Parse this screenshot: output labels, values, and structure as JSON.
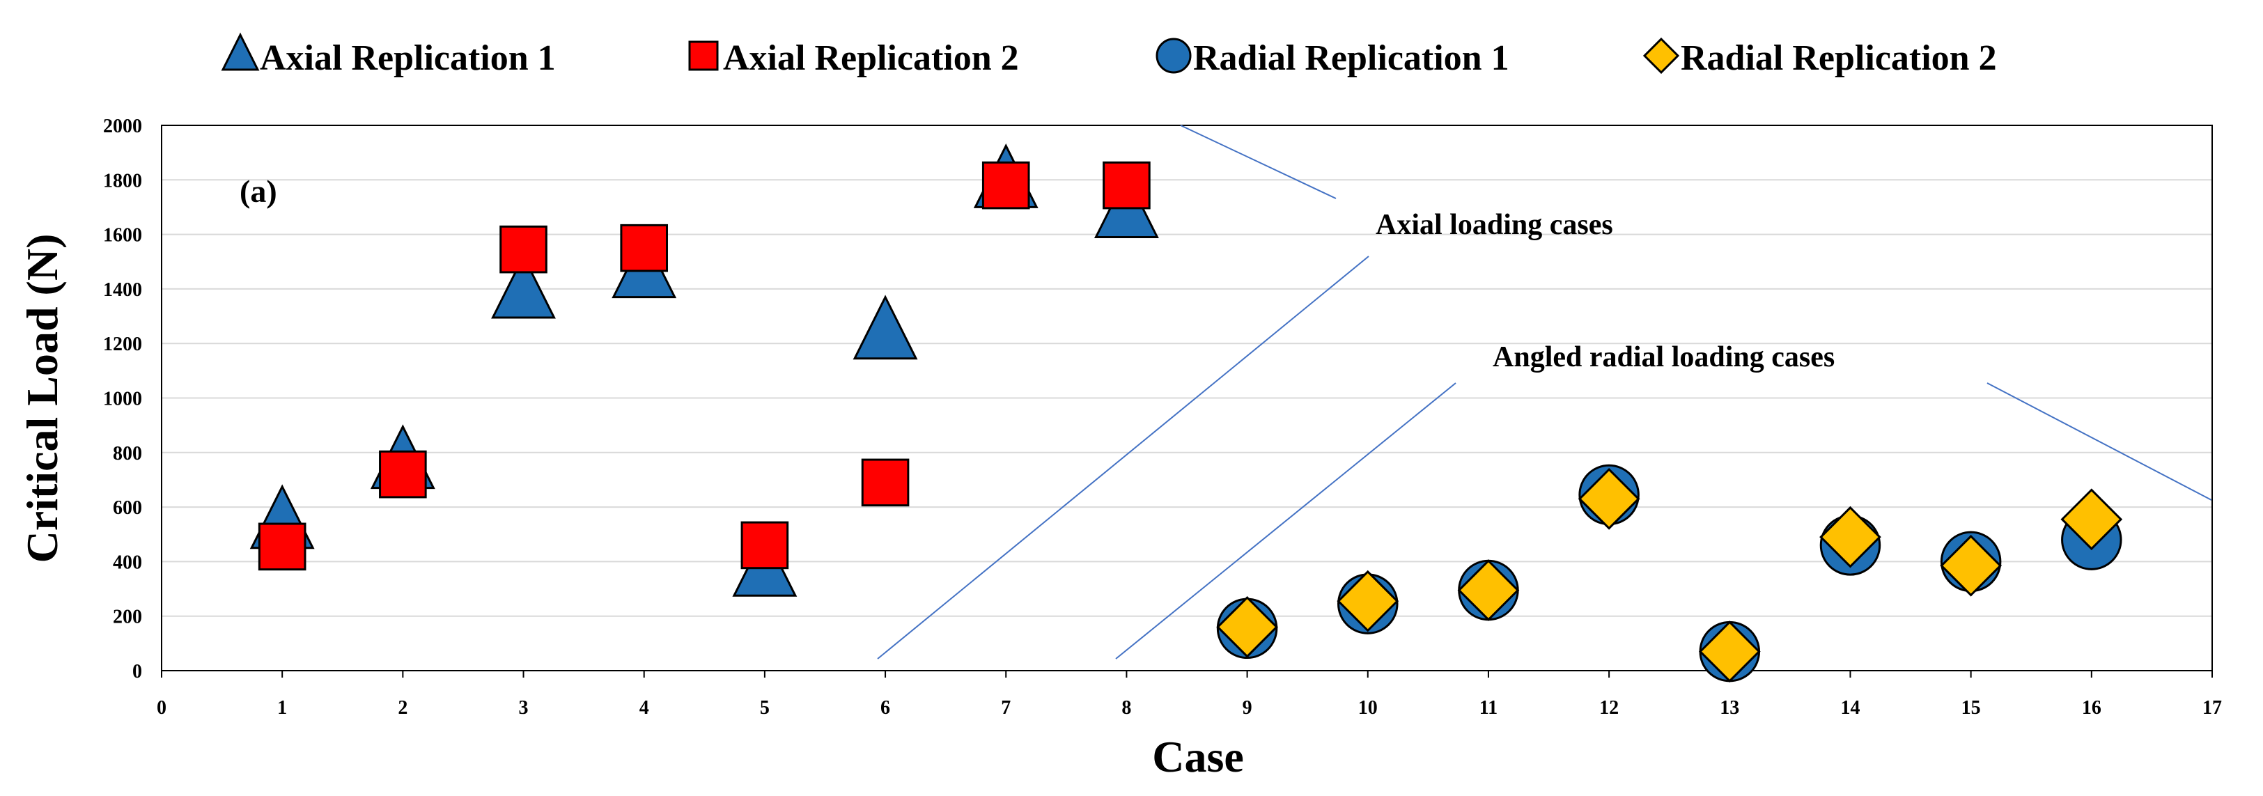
{
  "chart_data": {
    "type": "scatter",
    "title": "",
    "panel_label": "(a)",
    "xlabel": "Case",
    "ylabel": "Critical Load (N)",
    "xlim": [
      0,
      17
    ],
    "ylim": [
      0,
      2000
    ],
    "xticks": [
      0,
      1,
      2,
      3,
      4,
      5,
      6,
      7,
      8,
      9,
      10,
      11,
      12,
      13,
      14,
      15,
      16,
      17
    ],
    "yticks": [
      0,
      200,
      400,
      600,
      800,
      1000,
      1200,
      1400,
      1600,
      1800,
      2000
    ],
    "grid": "horizontal",
    "legend_position": "top",
    "series": [
      {
        "name": "Axial Replication 1",
        "marker": "triangle",
        "color": "#1F6FB5",
        "x": [
          1,
          2,
          3,
          4,
          5,
          6,
          7,
          8
        ],
        "y": [
          540,
          760,
          1385,
          1460,
          365,
          1235,
          1790,
          1680
        ]
      },
      {
        "name": "Axial Replication 2",
        "marker": "square",
        "color": "#FF0000",
        "x": [
          1,
          2,
          3,
          4,
          5,
          6,
          7,
          8
        ],
        "y": [
          455,
          720,
          1545,
          1550,
          460,
          690,
          1780,
          1780
        ]
      },
      {
        "name": "Radial Replication 1",
        "marker": "circle",
        "color": "#1F6FB5",
        "x": [
          9,
          10,
          11,
          12,
          13,
          14,
          15,
          16
        ],
        "y": [
          155,
          245,
          295,
          645,
          70,
          460,
          400,
          480
        ]
      },
      {
        "name": "Radial Replication 2",
        "marker": "diamond",
        "color": "#FFC000",
        "x": [
          9,
          10,
          11,
          12,
          13,
          14,
          15,
          16
        ],
        "y": [
          160,
          255,
          295,
          630,
          70,
          490,
          385,
          555
        ]
      }
    ],
    "annotations": [
      {
        "text": "Axial loading cases"
      },
      {
        "text": "Angled radial loading cases"
      }
    ]
  }
}
